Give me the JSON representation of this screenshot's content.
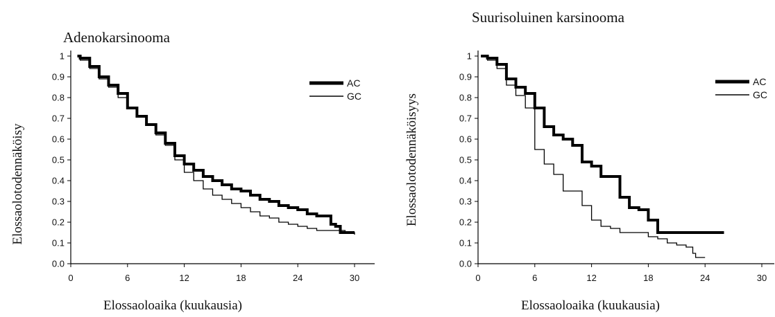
{
  "chart_data": [
    {
      "type": "line",
      "title": "Adenokarsinooma",
      "xlabel": "Elossaoloaika (kuukausia)",
      "ylabel": "Elossaolotodennäköisy",
      "xlim": [
        0,
        32
      ],
      "ylim": [
        0,
        1
      ],
      "x_ticks": [
        0,
        6,
        12,
        18,
        24,
        30
      ],
      "x_tick_labels": [
        "0",
        "6",
        "12",
        "18",
        "24",
        "30"
      ],
      "y_ticks": [
        0,
        0.1,
        0.2,
        0.3,
        0.4,
        0.5,
        0.6,
        0.7,
        0.8,
        0.9,
        1
      ],
      "y_tick_labels": [
        "0.0",
        "0.1",
        "0.2",
        "0.3",
        "0.4",
        "0.5",
        "0.6",
        "0.7",
        "0.8",
        "0.9",
        "1"
      ],
      "legend_position": "top-right",
      "grid": false,
      "series": [
        {
          "name": "AC",
          "color": "#000000",
          "style": "thick",
          "x": [
            0.7,
            1,
            2,
            3,
            4,
            5,
            6,
            7,
            8,
            9,
            10,
            11,
            12,
            13,
            14,
            15,
            16,
            17,
            18,
            19,
            20,
            21,
            22,
            23,
            24,
            25,
            26,
            27,
            27.5,
            28,
            28.5,
            29,
            30
          ],
          "y": [
            1.0,
            0.99,
            0.95,
            0.9,
            0.86,
            0.82,
            0.75,
            0.71,
            0.67,
            0.63,
            0.58,
            0.52,
            0.48,
            0.45,
            0.42,
            0.4,
            0.38,
            0.36,
            0.35,
            0.33,
            0.31,
            0.3,
            0.28,
            0.27,
            0.26,
            0.24,
            0.23,
            0.23,
            0.19,
            0.18,
            0.15,
            0.15,
            0.15
          ]
        },
        {
          "name": "GC",
          "color": "#000000",
          "style": "thin",
          "x": [
            0.7,
            1,
            2,
            3,
            4,
            5,
            6,
            7,
            8,
            9,
            10,
            11,
            12,
            13,
            14,
            15,
            16,
            17,
            18,
            19,
            20,
            21,
            22,
            23,
            24,
            25,
            26,
            27,
            28,
            29,
            30
          ],
          "y": [
            1.0,
            0.98,
            0.94,
            0.89,
            0.85,
            0.8,
            0.75,
            0.71,
            0.67,
            0.62,
            0.57,
            0.5,
            0.44,
            0.4,
            0.36,
            0.33,
            0.31,
            0.29,
            0.27,
            0.25,
            0.23,
            0.22,
            0.2,
            0.19,
            0.18,
            0.17,
            0.16,
            0.16,
            0.16,
            0.15,
            0.14
          ]
        }
      ]
    },
    {
      "type": "line",
      "title": "Suurisoluinen karsinooma",
      "xlabel": "Elossaoloaika (kuukausia)",
      "ylabel": "Elossaolotodennäköisyys",
      "xlim": [
        0,
        32
      ],
      "ylim": [
        0,
        1
      ],
      "x_ticks": [
        0,
        6,
        12,
        18,
        24,
        30
      ],
      "x_tick_labels": [
        "0",
        "6",
        "12",
        "18",
        "24",
        "30"
      ],
      "y_ticks": [
        0,
        0.1,
        0.2,
        0.3,
        0.4,
        0.5,
        0.6,
        0.7,
        0.8,
        0.9,
        1
      ],
      "y_tick_labels": [
        "0.0",
        "0.1",
        "0.2",
        "0.3",
        "0.4",
        "0.5",
        "0.6",
        "0.7",
        "0.8",
        "0.9",
        "1"
      ],
      "legend_position": "top-right",
      "grid": false,
      "series": [
        {
          "name": "AC",
          "color": "#000000",
          "style": "thick",
          "x": [
            0.3,
            1,
            2,
            3,
            4,
            5,
            6,
            7,
            8,
            9,
            10,
            11,
            12,
            13,
            14,
            15,
            16,
            17,
            18,
            19,
            20,
            22,
            24,
            26
          ],
          "y": [
            1.0,
            0.99,
            0.96,
            0.89,
            0.85,
            0.82,
            0.75,
            0.66,
            0.62,
            0.6,
            0.57,
            0.49,
            0.47,
            0.42,
            0.42,
            0.32,
            0.27,
            0.26,
            0.21,
            0.15,
            0.15,
            0.15,
            0.15,
            0.15
          ]
        },
        {
          "name": "GC",
          "color": "#000000",
          "style": "thin",
          "x": [
            0.3,
            1,
            2,
            3,
            4,
            5,
            6,
            7,
            8,
            9,
            10,
            11,
            12,
            13,
            14,
            15,
            16,
            17,
            18,
            19,
            20,
            21,
            22,
            22.7,
            23,
            24
          ],
          "y": [
            1.0,
            0.98,
            0.94,
            0.86,
            0.81,
            0.75,
            0.55,
            0.48,
            0.43,
            0.35,
            0.35,
            0.28,
            0.21,
            0.18,
            0.17,
            0.15,
            0.15,
            0.15,
            0.13,
            0.12,
            0.1,
            0.09,
            0.08,
            0.05,
            0.03,
            0.03
          ]
        }
      ]
    }
  ]
}
